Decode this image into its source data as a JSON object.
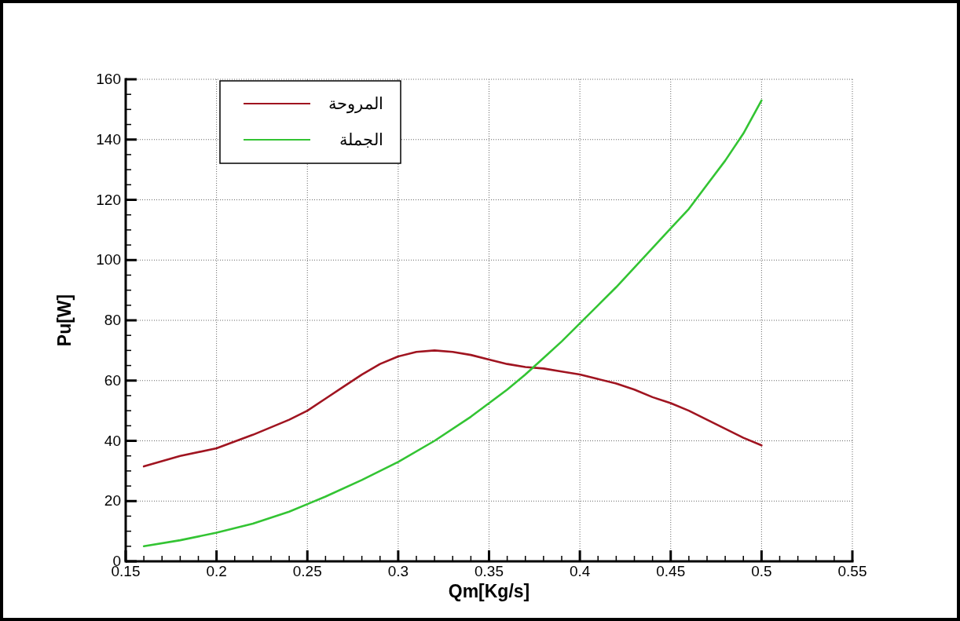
{
  "chart_data": {
    "type": "line",
    "xlabel": "Qm[Kg/s]",
    "ylabel": "Pu[W]",
    "xlim": [
      0.15,
      0.55
    ],
    "xticks": [
      0.15,
      0.2,
      0.25,
      0.3,
      0.35,
      0.4,
      0.45,
      0.5,
      0.55
    ],
    "ylim": [
      0,
      160
    ],
    "yticks": [
      0,
      20,
      40,
      60,
      80,
      100,
      120,
      140,
      160
    ],
    "grid": true,
    "legend": "top left",
    "line_style": "solid",
    "marker": "none",
    "series": [
      {
        "name": "المروحة",
        "color": "#a01420",
        "x": [
          0.16,
          0.18,
          0.2,
          0.22,
          0.24,
          0.25,
          0.26,
          0.27,
          0.28,
          0.29,
          0.3,
          0.31,
          0.32,
          0.33,
          0.34,
          0.35,
          0.36,
          0.37,
          0.38,
          0.39,
          0.4,
          0.41,
          0.42,
          0.43,
          0.44,
          0.45,
          0.46,
          0.47,
          0.48,
          0.49,
          0.5
        ],
        "values": [
          31.5,
          35,
          37.5,
          42,
          47,
          50,
          54,
          58,
          62,
          65.5,
          68,
          69.5,
          70,
          69.5,
          68.5,
          67,
          65.5,
          64.5,
          64,
          63,
          62,
          60.5,
          59,
          57,
          54.5,
          52.5,
          50,
          47,
          44,
          41,
          38.5
        ]
      },
      {
        "name": "الجملة",
        "color": "#33c433",
        "x": [
          0.16,
          0.18,
          0.2,
          0.22,
          0.24,
          0.25,
          0.26,
          0.28,
          0.3,
          0.32,
          0.34,
          0.35,
          0.36,
          0.37,
          0.38,
          0.39,
          0.4,
          0.41,
          0.42,
          0.43,
          0.44,
          0.45,
          0.46,
          0.47,
          0.48,
          0.49,
          0.5
        ],
        "values": [
          5,
          7,
          9.5,
          12.5,
          16.5,
          19,
          21.5,
          27,
          33,
          40,
          48,
          52.5,
          57,
          62,
          67.5,
          73,
          79,
          85,
          91,
          97.5,
          104,
          110.5,
          117,
          125,
          133,
          142,
          153
        ]
      }
    ]
  }
}
